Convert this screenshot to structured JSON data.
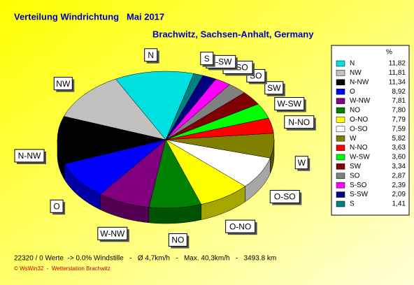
{
  "chart_data": {
    "type": "pie",
    "title": "Verteilung Windrichtung   Mai 2017",
    "subtitle": "Brachwitz, Sachsen-Anhalt, Germany",
    "legend_header": "%",
    "categories": [
      "N",
      "NW",
      "N-NW",
      "O",
      "W-NW",
      "NO",
      "O-NO",
      "O-SO",
      "W",
      "N-NO",
      "W-SW",
      "SW",
      "SO",
      "S-SO",
      "S-SW",
      "S"
    ],
    "values": [
      11.82,
      11.81,
      11.34,
      8.92,
      7.81,
      7.8,
      7.79,
      7.59,
      5.82,
      3.63,
      3.6,
      3.34,
      2.87,
      2.39,
      2.09,
      1.41
    ],
    "value_labels": [
      "11,82",
      "11,81",
      "11,34",
      "8,92",
      "7,81",
      "7,80",
      "7,79",
      "7,59",
      "5,82",
      "3,63",
      "3,60",
      "3,34",
      "2,87",
      "2,39",
      "2,09",
      "1,41"
    ],
    "colors": [
      "#00e0e0",
      "#c0c0c0",
      "#000000",
      "#0000ff",
      "#800080",
      "#008000",
      "#ffff00",
      "#ffffff",
      "#808000",
      "#ff0000",
      "#00ff00",
      "#800000",
      "#808080",
      "#ff00ff",
      "#000080",
      "#008080"
    ],
    "footer": "22320 / 0 Werte  -> 0.0% Windstille   -   Ø 4,7km/h   -   Max. 40,3km/h   -   3493.8 km",
    "copyright": "© WsWin32  -  Wetterstation Brachwitz"
  }
}
